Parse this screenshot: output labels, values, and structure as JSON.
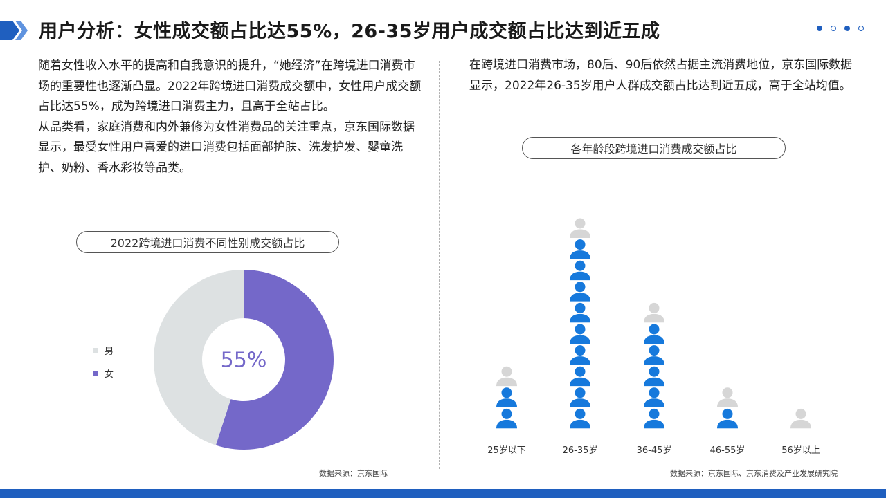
{
  "header": {
    "title": "用户分析：女性成交额占比达55%，26-35岁用户成交额占比达到近五成"
  },
  "left_text": [
    "随着女性收入水平的提高和自我意识的提升，“她经济”在跨境进口消费市场的重要性也逐渐凸显。2022年跨境进口消费成交额中，女性用户成交额占比达55%，成为跨境进口消费主力，且高于全站占比。",
    "从品类看，家庭消费和内外兼修为女性消费品的关注重点，京东国际数据显示，最受女性用户喜爱的进口消费包括面部护肤、洗发护发、婴童洗护、奶粉、香水彩妆等品类。"
  ],
  "right_text": "在跨境进口消费市场，80后、90后依然占据主流消费地位，京东国际数据显示，2022年26-35岁用户人群成交额占比达到近五成，高于全站均值。",
  "colors": {
    "accent": "#1f5fbf",
    "female": "#7468c9",
    "male": "#dde1e2",
    "icon_blue": "#1679dc",
    "icon_grey": "#d6d6d6"
  },
  "chart_data": [
    {
      "type": "pie",
      "title": "2022跨境进口消费不同性别成交额占比",
      "categories": [
        "男",
        "女"
      ],
      "values": [
        45,
        55
      ],
      "center_label": "55%",
      "legend_position": "left",
      "source": "数据来源：京东国际"
    },
    {
      "type": "bar",
      "title": "各年龄段跨境进口消费成交额占比",
      "categories": [
        "25岁以下",
        "26-35岁",
        "36-45岁",
        "46-55岁",
        "56岁以上"
      ],
      "values": [
        2.7,
        9.8,
        5.6,
        1.8,
        0.8
      ],
      "unit": "person icons",
      "source": "数据来源：京东国际、京东消费及产业发展研究院"
    }
  ]
}
